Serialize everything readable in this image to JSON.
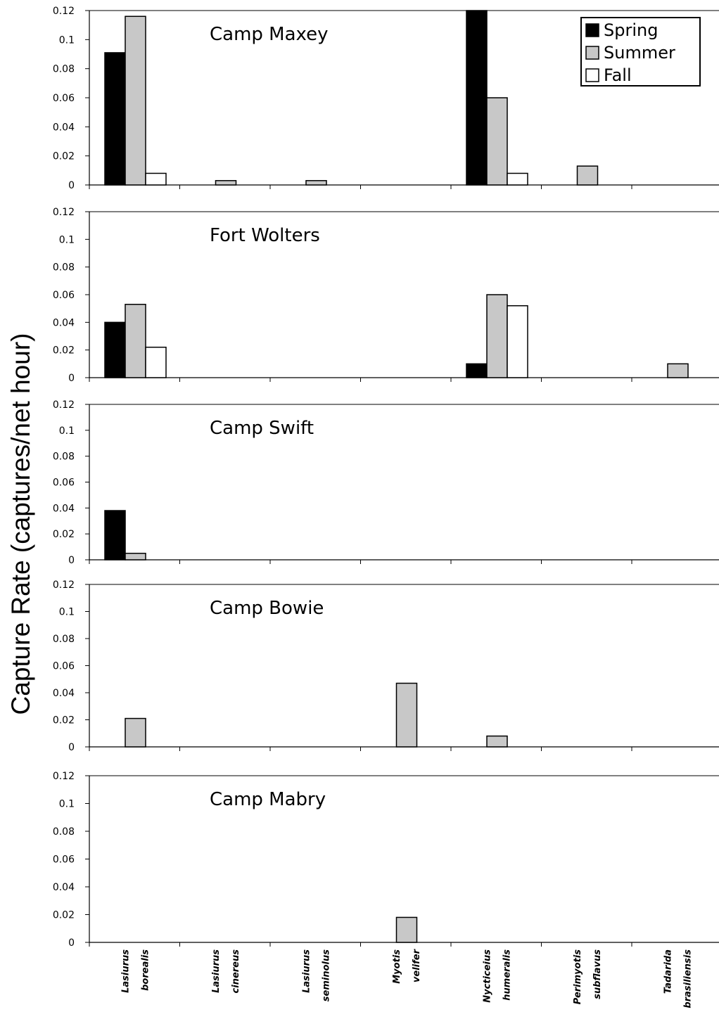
{
  "chart_data": {
    "type": "bar",
    "ylabel": "Capture Rate (captures/net hour)",
    "categories": [
      [
        "Lasiurus",
        "borealis"
      ],
      [
        "Lasiurus",
        "cinereus"
      ],
      [
        "Lasiurus",
        "seminolus"
      ],
      [
        "Myotis",
        "velifer"
      ],
      [
        "Nycticeius",
        "humeralis"
      ],
      [
        "Perimyotis",
        "subflavus"
      ],
      [
        "Tadarida",
        "brasiliensis"
      ]
    ],
    "legend": {
      "position": "top-right",
      "entries": [
        {
          "name": "Spring",
          "color": "#000000"
        },
        {
          "name": "Summer",
          "color": "#c8c8c8"
        },
        {
          "name": "Fall",
          "color": "#ffffff"
        }
      ]
    },
    "yticks": [
      "0",
      "0.02",
      "0.04",
      "0.06",
      "0.08",
      "0.1",
      "0.12"
    ],
    "ylim": [
      0,
      0.12
    ],
    "panels": [
      {
        "title": "Camp Maxey",
        "series": [
          {
            "name": "Spring",
            "values": [
              0.091,
              0,
              0,
              0,
              0.12,
              0,
              0
            ]
          },
          {
            "name": "Summer",
            "values": [
              0.116,
              0.003,
              0.003,
              0,
              0.06,
              0.013,
              0
            ]
          },
          {
            "name": "Fall",
            "values": [
              0.008,
              0,
              0,
              0,
              0.008,
              0,
              0
            ]
          }
        ]
      },
      {
        "title": "Fort Wolters",
        "series": [
          {
            "name": "Spring",
            "values": [
              0.04,
              0,
              0,
              0,
              0.01,
              0,
              0
            ]
          },
          {
            "name": "Summer",
            "values": [
              0.053,
              0,
              0,
              0,
              0.06,
              0,
              0.01
            ]
          },
          {
            "name": "Fall",
            "values": [
              0.022,
              0,
              0,
              0,
              0.052,
              0,
              0
            ]
          }
        ]
      },
      {
        "title": "Camp Swift",
        "series": [
          {
            "name": "Spring",
            "values": [
              0.038,
              0,
              0,
              0,
              0,
              0,
              0
            ]
          },
          {
            "name": "Summer",
            "values": [
              0.005,
              0,
              0,
              0,
              0,
              0,
              0
            ]
          },
          {
            "name": "Fall",
            "values": [
              0,
              0,
              0,
              0,
              0,
              0,
              0
            ]
          }
        ]
      },
      {
        "title": "Camp Bowie",
        "series": [
          {
            "name": "Spring",
            "values": [
              0,
              0,
              0,
              0,
              0,
              0,
              0
            ]
          },
          {
            "name": "Summer",
            "values": [
              0.021,
              0,
              0,
              0.047,
              0.008,
              0,
              0
            ]
          },
          {
            "name": "Fall",
            "values": [
              0,
              0,
              0,
              0,
              0,
              0,
              0
            ]
          }
        ]
      },
      {
        "title": "Camp Mabry",
        "series": [
          {
            "name": "Spring",
            "values": [
              0,
              0,
              0,
              0,
              0,
              0,
              0
            ]
          },
          {
            "name": "Summer",
            "values": [
              0,
              0,
              0,
              0.018,
              0,
              0,
              0
            ]
          },
          {
            "name": "Fall",
            "values": [
              0,
              0,
              0,
              0,
              0,
              0,
              0
            ]
          }
        ]
      }
    ]
  }
}
